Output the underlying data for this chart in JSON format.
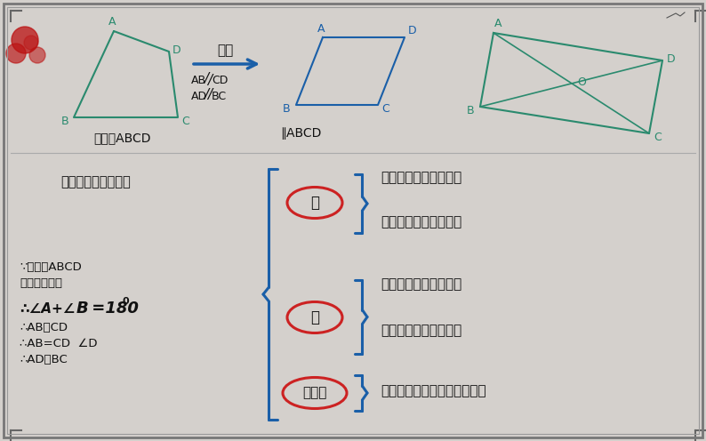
{
  "bg_color": "#d4d0cc",
  "border_color": "#666666",
  "trapezoid_color": "#2a8a6e",
  "parallelogram_color": "#1a5fa8",
  "arrow_color": "#1a5fa8",
  "circle_color": "#cc2222",
  "brace_color": "#1a5fa8",
  "text_dark": "#111111",
  "text_blue": "#1a5fa8",
  "label_bian": "边",
  "label_jiao": "角",
  "label_duijiaoxian": "对角线",
  "label_xingzhi": "平行四边形的性质：",
  "prop1": "平行四边形的对边平行",
  "prop2": "平行四边形的对边相等",
  "prop3": "平行四边形的对角相等",
  "prop4": "平行四边形的邻角互补",
  "prop5": "平行四边形的对角线互相平分",
  "label_ruoguo": "如果",
  "cond1": "AB／CD",
  "cond2": "AD／BC",
  "label_quadABCD": "四边形ABCD",
  "label_paraABCD": "∥ABCD",
  "therefore1": "∵四边形ABCD",
  "therefore2": "是平行四边形",
  "therefore3a": "∴∠A+∠B =180",
  "therefore3b": "0",
  "therefore4": "∴AB／CD",
  "therefore5": "∴AB=CD  ∠D",
  "therefore6": "∴AD／BC"
}
